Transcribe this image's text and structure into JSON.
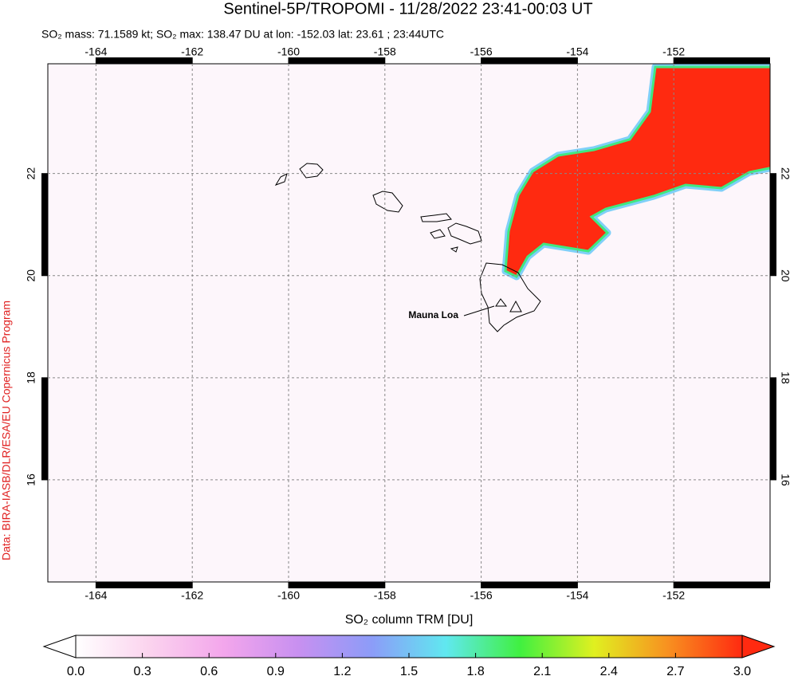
{
  "chart_data": {
    "type": "map",
    "title": "Sentinel-5P/TROPOMI - 11/28/2022 23:41-00:03 UT",
    "subtitle": "SO₂ mass: 71.1589 kt; SO₂ max: 138.47 DU at lon: -152.03 lat: 23.61 ; 23:44UTC",
    "credit": "Data: BIRA-IASB/DLR/ESA/EU Copernicus Program",
    "annotation": "Mauna Loa",
    "xlim": [
      -165,
      -150
    ],
    "ylim": [
      14,
      24.15
    ],
    "xticks": [
      -164,
      -162,
      -160,
      -158,
      -156,
      -154,
      -152
    ],
    "yticks": [
      16,
      18,
      20,
      22
    ],
    "grid": true,
    "colorbar": {
      "label": "SO₂ column TRM [DU]",
      "lim": [
        0,
        3
      ],
      "ticks": [
        {
          "value": 0,
          "label": "0.0"
        },
        0.3,
        0.6,
        0.9,
        1.2,
        1.5,
        1.8,
        2.1,
        2.4,
        2.7,
        {
          "value": 3,
          "label": "3.0"
        }
      ],
      "colors": [
        "#ffffff",
        "#fbd3ee",
        "#f3a6ec",
        "#c890f0",
        "#8c9cf8",
        "#60e8f0",
        "#40f040",
        "#e0f020",
        "#f89020",
        "#ff2a10"
      ]
    }
  }
}
